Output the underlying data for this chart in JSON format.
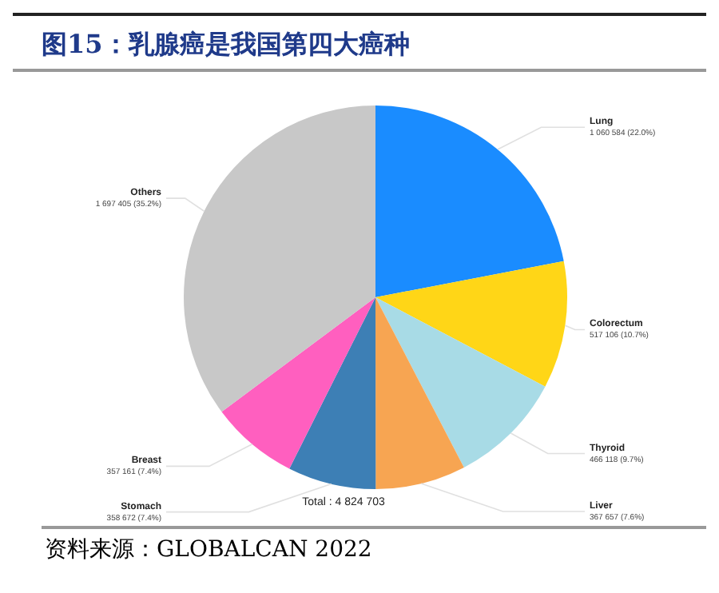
{
  "chart_data": {
    "type": "pie",
    "title": "图15：乳腺癌是我国第四大癌种",
    "categories": [
      "Lung",
      "Colorectum",
      "Thyroid",
      "Liver",
      "Stomach",
      "Breast",
      "Others"
    ],
    "values": [
      1060584,
      517106,
      466118,
      367657,
      358672,
      357161,
      1697405
    ],
    "colors": [
      "#1a8cff",
      "#ffd617",
      "#a8dbe6",
      "#f7a552",
      "#3d7fb5",
      "#ff5fbf",
      "#c8c8c8"
    ],
    "value_labels": [
      "1 060 584 (22.0%)",
      "517 106 (10.7%)",
      "466 118 (9.7%)",
      "367 657 (7.6%)",
      "358 672 (7.4%)",
      "357 161 (7.4%)",
      "1 697 405 (35.2%)"
    ],
    "annotations": [
      "Total : 4 824 703",
      "资料来源：GLOBALCAN 2022"
    ]
  }
}
